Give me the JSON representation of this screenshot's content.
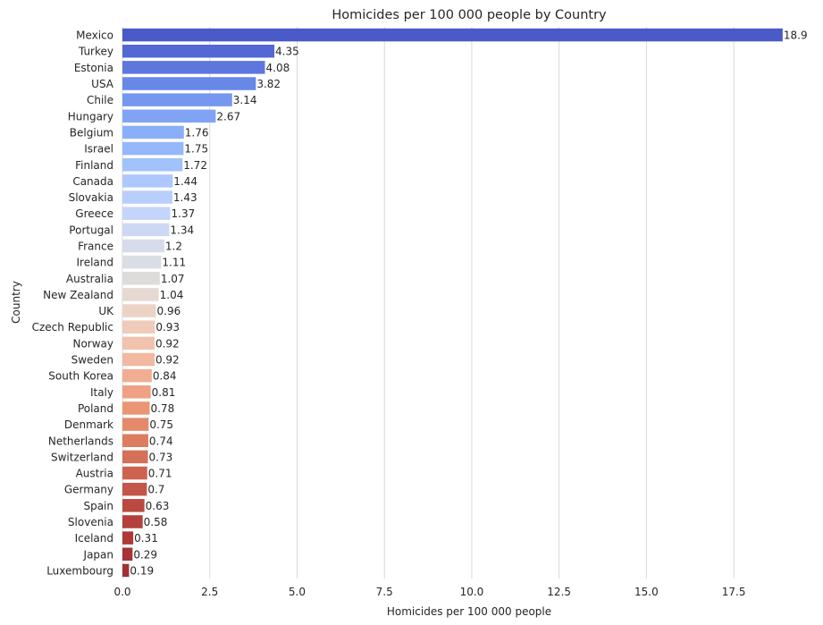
{
  "chart_data": {
    "type": "bar",
    "orientation": "horizontal",
    "title": "Homicides per 100 000 people by Country",
    "xlabel": "Homicides per 100 000 people",
    "ylabel": "Country",
    "xlim": [
      0,
      19.85
    ],
    "xticks": [
      0,
      2.5,
      5,
      7.5,
      10,
      12.5,
      15,
      17.5
    ],
    "xtick_labels": [
      "0.0",
      "2.5",
      "5.0",
      "7.5",
      "10.0",
      "12.5",
      "15.0",
      "17.5"
    ],
    "grid": "vertical",
    "palette": "coolwarm",
    "categories": [
      "Mexico",
      "Turkey",
      "Estonia",
      "USA",
      "Chile",
      "Hungary",
      "Belgium",
      "Israel",
      "Finland",
      "Canada",
      "Slovakia",
      "Greece",
      "Portugal",
      "France",
      "Ireland",
      "Australia",
      "New Zealand",
      "UK",
      "Czech Republic",
      "Norway",
      "Sweden",
      "South Korea",
      "Italy",
      "Poland",
      "Denmark",
      "Netherlands",
      "Switzerland",
      "Austria",
      "Germany",
      "Spain",
      "Slovenia",
      "Iceland",
      "Japan",
      "Luxembourg"
    ],
    "values": [
      18.9,
      4.35,
      4.08,
      3.82,
      3.14,
      2.67,
      1.76,
      1.75,
      1.72,
      1.44,
      1.43,
      1.37,
      1.34,
      1.2,
      1.11,
      1.07,
      1.04,
      0.96,
      0.93,
      0.92,
      0.92,
      0.84,
      0.81,
      0.78,
      0.75,
      0.74,
      0.73,
      0.71,
      0.7,
      0.63,
      0.58,
      0.31,
      0.29,
      0.19
    ],
    "value_labels": [
      "18.9",
      "4.35",
      "4.08",
      "3.82",
      "3.14",
      "2.67",
      "1.76",
      "1.75",
      "1.72",
      "1.44",
      "1.43",
      "1.37",
      "1.34",
      "1.2",
      "1.11",
      "1.07",
      "1.04",
      "0.96",
      "0.93",
      "0.92",
      "0.92",
      "0.84",
      "0.81",
      "0.78",
      "0.75",
      "0.74",
      "0.73",
      "0.71",
      "0.7",
      "0.63",
      "0.58",
      "0.31",
      "0.29",
      "0.19"
    ],
    "colors": [
      "#4a5bc9",
      "#5368d5",
      "#5d77df",
      "#6888e8",
      "#7597ef",
      "#80a3f4",
      "#8aaef8",
      "#95b8fb",
      "#a1c2fd",
      "#acc8fe",
      "#b8cefd",
      "#c3d5fa",
      "#cdd9f4",
      "#d6dcec",
      "#dadde3",
      "#dedcdb",
      "#e5d9d2",
      "#ecd3c6",
      "#efcbbb",
      "#f1c2ae",
      "#f2b8a0",
      "#f1ad92",
      "#eea184",
      "#ea9676",
      "#e48a6b",
      "#dc7d5f",
      "#d57058",
      "#cd634f",
      "#c35648",
      "#ba4a41",
      "#b3403c",
      "#ad3a39",
      "#a73436",
      "#a03033"
    ]
  }
}
